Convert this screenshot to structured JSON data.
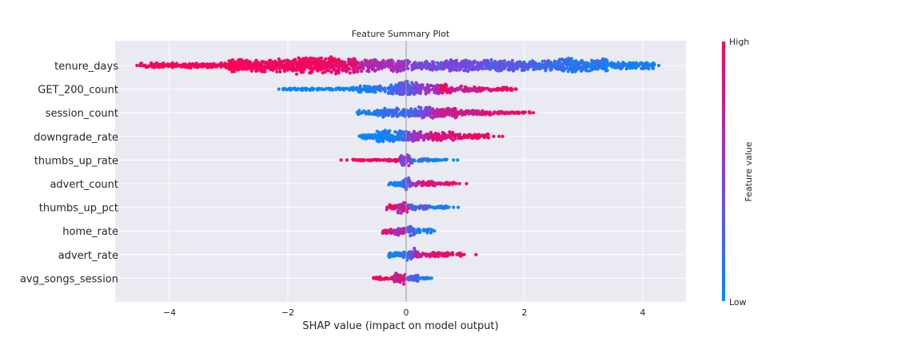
{
  "chart_data": {
    "type": "scatter",
    "subtype": "shap-beeswarm",
    "title": "Feature Summary Plot",
    "xlabel": "SHAP value (impact on model output)",
    "ylabel": "",
    "xlim": [
      -4.9,
      4.8
    ],
    "xticks": [
      -4,
      -2,
      0,
      2,
      4
    ],
    "xtick_labels": [
      "−4",
      "−2",
      "0",
      "2",
      "4"
    ],
    "grid": true,
    "colorbar": {
      "label": "Feature value",
      "high_label": "High",
      "low_label": "Low",
      "high_color": "#ff0052",
      "mid_color": "#8a3cd8",
      "low_color": "#008bfb"
    },
    "features": [
      {
        "name": "tenure_days",
        "segments": [
          [
            -4.5,
            -3.0,
            0.3,
            1.0,
            1.0
          ],
          [
            -3.0,
            -1.9,
            0.8,
            1.0,
            0.95
          ],
          [
            -1.9,
            -0.8,
            1.0,
            1.0,
            0.85
          ],
          [
            -0.8,
            0.0,
            0.75,
            0.7,
            0.6
          ],
          [
            0.0,
            0.6,
            0.6,
            0.5,
            0.35
          ],
          [
            0.6,
            1.6,
            0.7,
            0.45,
            0.3
          ],
          [
            1.6,
            2.4,
            0.65,
            0.35,
            0.2
          ],
          [
            2.4,
            3.4,
            0.85,
            0.2,
            0.1
          ],
          [
            3.4,
            4.2,
            0.45,
            0.1,
            0.05
          ]
        ],
        "outliers": [
          [
            -4.55,
            1.0
          ],
          [
            4.15,
            0.1
          ],
          [
            4.27,
            0.05
          ]
        ]
      },
      {
        "name": "GET_200_count",
        "segments": [
          [
            -2.1,
            -0.9,
            0.15,
            0.0,
            0.0
          ],
          [
            -0.9,
            -0.3,
            0.4,
            0.05,
            0.15
          ],
          [
            -0.3,
            0.2,
            0.9,
            0.2,
            0.4
          ],
          [
            0.2,
            0.55,
            0.6,
            0.45,
            0.65
          ],
          [
            0.55,
            0.75,
            0.65,
            0.85,
            0.95
          ],
          [
            0.75,
            1.3,
            0.35,
            0.7,
            0.85
          ],
          [
            1.3,
            1.85,
            0.2,
            0.9,
            1.0
          ]
        ],
        "outliers": [
          [
            -2.15,
            0.0
          ],
          [
            1.86,
            1.0
          ]
        ]
      },
      {
        "name": "session_count",
        "segments": [
          [
            -0.85,
            -0.4,
            0.35,
            0.05,
            0.15
          ],
          [
            -0.4,
            0.2,
            0.55,
            0.15,
            0.3
          ],
          [
            0.2,
            0.45,
            0.75,
            0.35,
            0.55
          ],
          [
            0.45,
            0.9,
            0.6,
            0.7,
            0.85
          ],
          [
            0.9,
            1.5,
            0.3,
            0.75,
            0.9
          ],
          [
            1.5,
            2.1,
            0.15,
            0.9,
            1.0
          ]
        ],
        "outliers": [
          [
            2.15,
            1.0
          ]
        ]
      },
      {
        "name": "downgrade_rate",
        "segments": [
          [
            -0.8,
            -0.5,
            0.35,
            0.0,
            0.05
          ],
          [
            -0.5,
            0.0,
            0.75,
            0.05,
            0.15
          ],
          [
            0.0,
            0.4,
            0.65,
            0.5,
            0.7
          ],
          [
            0.4,
            0.9,
            0.55,
            0.8,
            0.95
          ],
          [
            0.9,
            1.4,
            0.3,
            0.9,
            1.0
          ],
          [
            1.4,
            1.4,
            0.0,
            1.0,
            1.0
          ]
        ],
        "outliers": [
          [
            1.48,
            1.0
          ],
          [
            1.57,
            1.0
          ],
          [
            1.63,
            1.0
          ]
        ]
      },
      {
        "name": "thumbs_up_rate",
        "segments": [
          [
            -0.9,
            -0.3,
            0.1,
            1.0,
            1.0
          ],
          [
            -0.3,
            -0.1,
            0.2,
            0.9,
            1.0
          ],
          [
            -0.1,
            0.1,
            0.7,
            0.35,
            0.65
          ],
          [
            0.1,
            0.4,
            0.2,
            0.05,
            0.15
          ],
          [
            0.4,
            0.7,
            0.1,
            0.0,
            0.05
          ]
        ],
        "outliers": [
          [
            -1.1,
            1.0
          ],
          [
            -1.0,
            1.0
          ],
          [
            0.8,
            0.0
          ],
          [
            0.87,
            0.0
          ]
        ]
      },
      {
        "name": "advert_count",
        "segments": [
          [
            -0.3,
            -0.05,
            0.3,
            0.0,
            0.05
          ],
          [
            -0.05,
            0.1,
            0.7,
            0.2,
            0.5
          ],
          [
            0.1,
            0.5,
            0.3,
            0.7,
            0.85
          ],
          [
            0.5,
            0.85,
            0.15,
            0.9,
            1.0
          ]
        ],
        "outliers": [
          [
            0.9,
            1.0
          ],
          [
            1.02,
            1.0
          ]
        ]
      },
      {
        "name": "thumbs_up_pct",
        "segments": [
          [
            -0.35,
            -0.15,
            0.3,
            0.9,
            1.0
          ],
          [
            -0.15,
            0.05,
            0.7,
            0.6,
            0.9
          ],
          [
            0.05,
            0.4,
            0.3,
            0.2,
            0.35
          ],
          [
            0.4,
            0.75,
            0.2,
            0.0,
            0.05
          ]
        ],
        "outliers": [
          [
            0.8,
            0.0
          ],
          [
            0.88,
            0.0
          ]
        ]
      },
      {
        "name": "home_rate",
        "segments": [
          [
            -0.4,
            -0.2,
            0.3,
            0.75,
            0.95
          ],
          [
            -0.2,
            0.0,
            0.55,
            0.5,
            0.8
          ],
          [
            0.0,
            0.15,
            0.7,
            0.15,
            0.35
          ],
          [
            0.15,
            0.45,
            0.25,
            0.0,
            0.1
          ]
        ],
        "outliers": [
          [
            0.48,
            0.0
          ]
        ]
      },
      {
        "name": "advert_rate",
        "segments": [
          [
            -0.3,
            -0.05,
            0.35,
            0.0,
            0.1
          ],
          [
            -0.05,
            0.15,
            0.75,
            0.15,
            0.45
          ],
          [
            0.15,
            0.5,
            0.3,
            0.75,
            0.9
          ],
          [
            0.5,
            0.95,
            0.25,
            0.9,
            1.0
          ]
        ],
        "outliers": [
          [
            0.98,
            1.0
          ],
          [
            1.18,
            1.0
          ]
        ]
      },
      {
        "name": "avg_songs_session",
        "segments": [
          [
            -0.55,
            -0.2,
            0.2,
            0.9,
            1.0
          ],
          [
            -0.2,
            0.0,
            0.75,
            0.7,
            0.9
          ],
          [
            0.0,
            0.2,
            0.45,
            0.2,
            0.35
          ],
          [
            0.2,
            0.42,
            0.15,
            0.0,
            0.1
          ]
        ],
        "outliers": [
          [
            -0.55,
            1.0
          ],
          [
            0.43,
            0.0
          ]
        ]
      }
    ]
  }
}
